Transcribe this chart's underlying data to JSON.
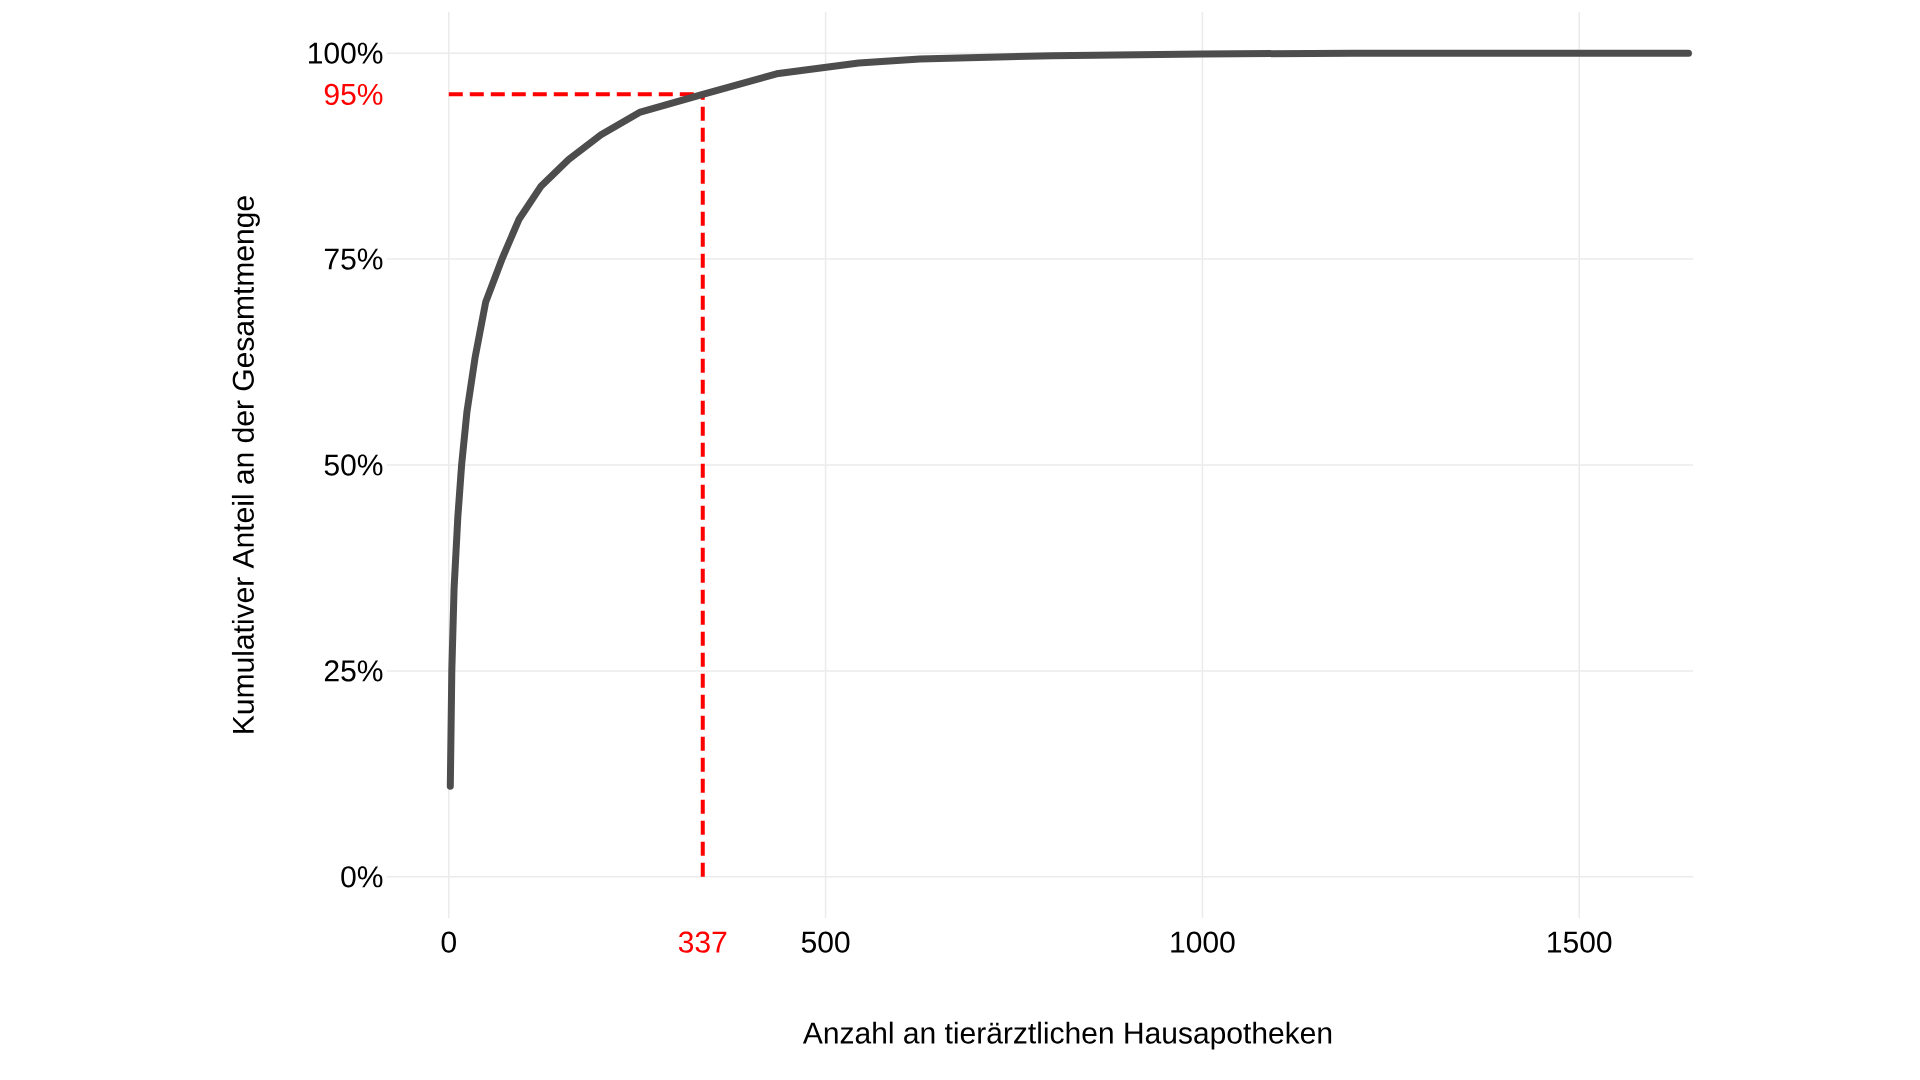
{
  "chart_data": {
    "type": "line",
    "xlabel": "Anzahl an tierärztlichen Hausapotheken",
    "ylabel": "Kumulativer Anteil an der Gesamtmenge",
    "series": [
      {
        "color": "#4d4d4d",
        "x": [
          2,
          4,
          7,
          12,
          17,
          24,
          35,
          49,
          71,
          93,
          122,
          159,
          202,
          253,
          337,
          435,
          544,
          625,
          800,
          1000,
          1200,
          1645
        ],
        "values": [
          11,
          25,
          35,
          43.7,
          50,
          56.4,
          63.1,
          69.8,
          75.1,
          79.8,
          83.8,
          87.1,
          90.1,
          92.8,
          95,
          97.5,
          98.8,
          99.3,
          99.7,
          99.9,
          100,
          100
        ]
      }
    ],
    "xlim": [
      -82,
      1651
    ],
    "ylim": [
      -5,
      105
    ],
    "xticks": [
      0,
      500,
      1000,
      1500
    ],
    "yticks": [
      {
        "value": 0,
        "label": "0%"
      },
      {
        "value": 25,
        "label": "25%"
      },
      {
        "value": 50,
        "label": "50%"
      },
      {
        "value": 75,
        "label": "75%"
      },
      {
        "value": 100,
        "label": "100%"
      }
    ],
    "ref_lines": [
      {
        "axis": "x",
        "value": 337,
        "label": "337",
        "color": "#ff0000",
        "line_style": "dashed"
      },
      {
        "axis": "y",
        "value": 95,
        "label": "95%",
        "color": "#ff0000",
        "line_style": "dashed"
      }
    ],
    "grid": true,
    "marker": "none",
    "line_style": "solid"
  }
}
